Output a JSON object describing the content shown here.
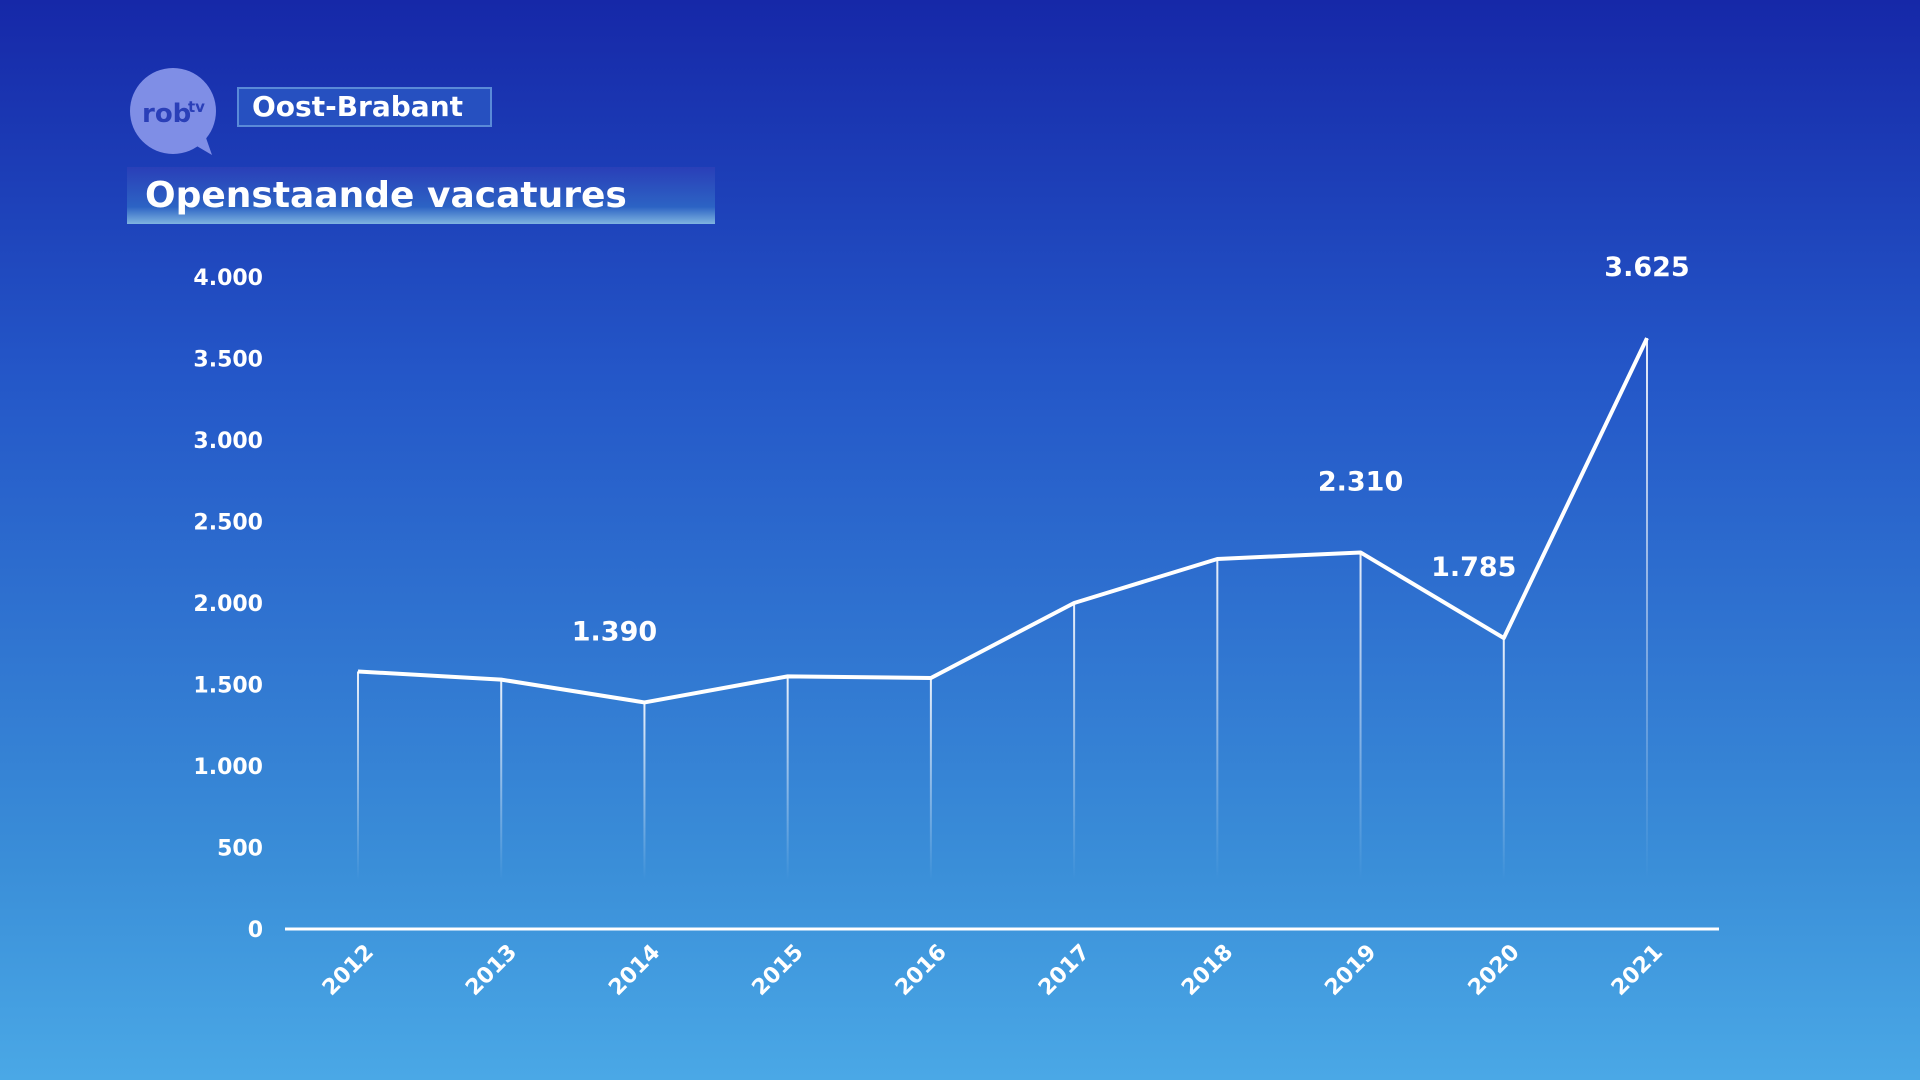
{
  "logo": {
    "main": "rob",
    "sup": "tv"
  },
  "region": "Oost-Brabant",
  "chart_data": {
    "type": "line",
    "title": "Openstaande vacatures",
    "categories": [
      "2012",
      "2013",
      "2014",
      "2015",
      "2016",
      "2017",
      "2018",
      "2019",
      "2020",
      "2021"
    ],
    "values": [
      1580,
      1530,
      1390,
      1550,
      1540,
      2000,
      2270,
      2310,
      1785,
      3625
    ],
    "value_labels": [
      null,
      null,
      "1.390",
      null,
      null,
      null,
      null,
      "2.310",
      "1.785",
      "3.625"
    ],
    "color": "#ffffff",
    "ylim": [
      0,
      4000
    ],
    "yticks": [
      0,
      500,
      {
        "value": 1000,
        "label": "1.000"
      },
      {
        "value": 1500,
        "label": "1.500"
      },
      {
        "value": 2000,
        "label": "2.000"
      },
      {
        "value": 2500,
        "label": "2.500"
      },
      {
        "value": 3000,
        "label": "3.000"
      },
      {
        "value": 3500,
        "label": "3.500"
      },
      {
        "value": 4000,
        "label": "4.000"
      }
    ],
    "grid": false
  }
}
